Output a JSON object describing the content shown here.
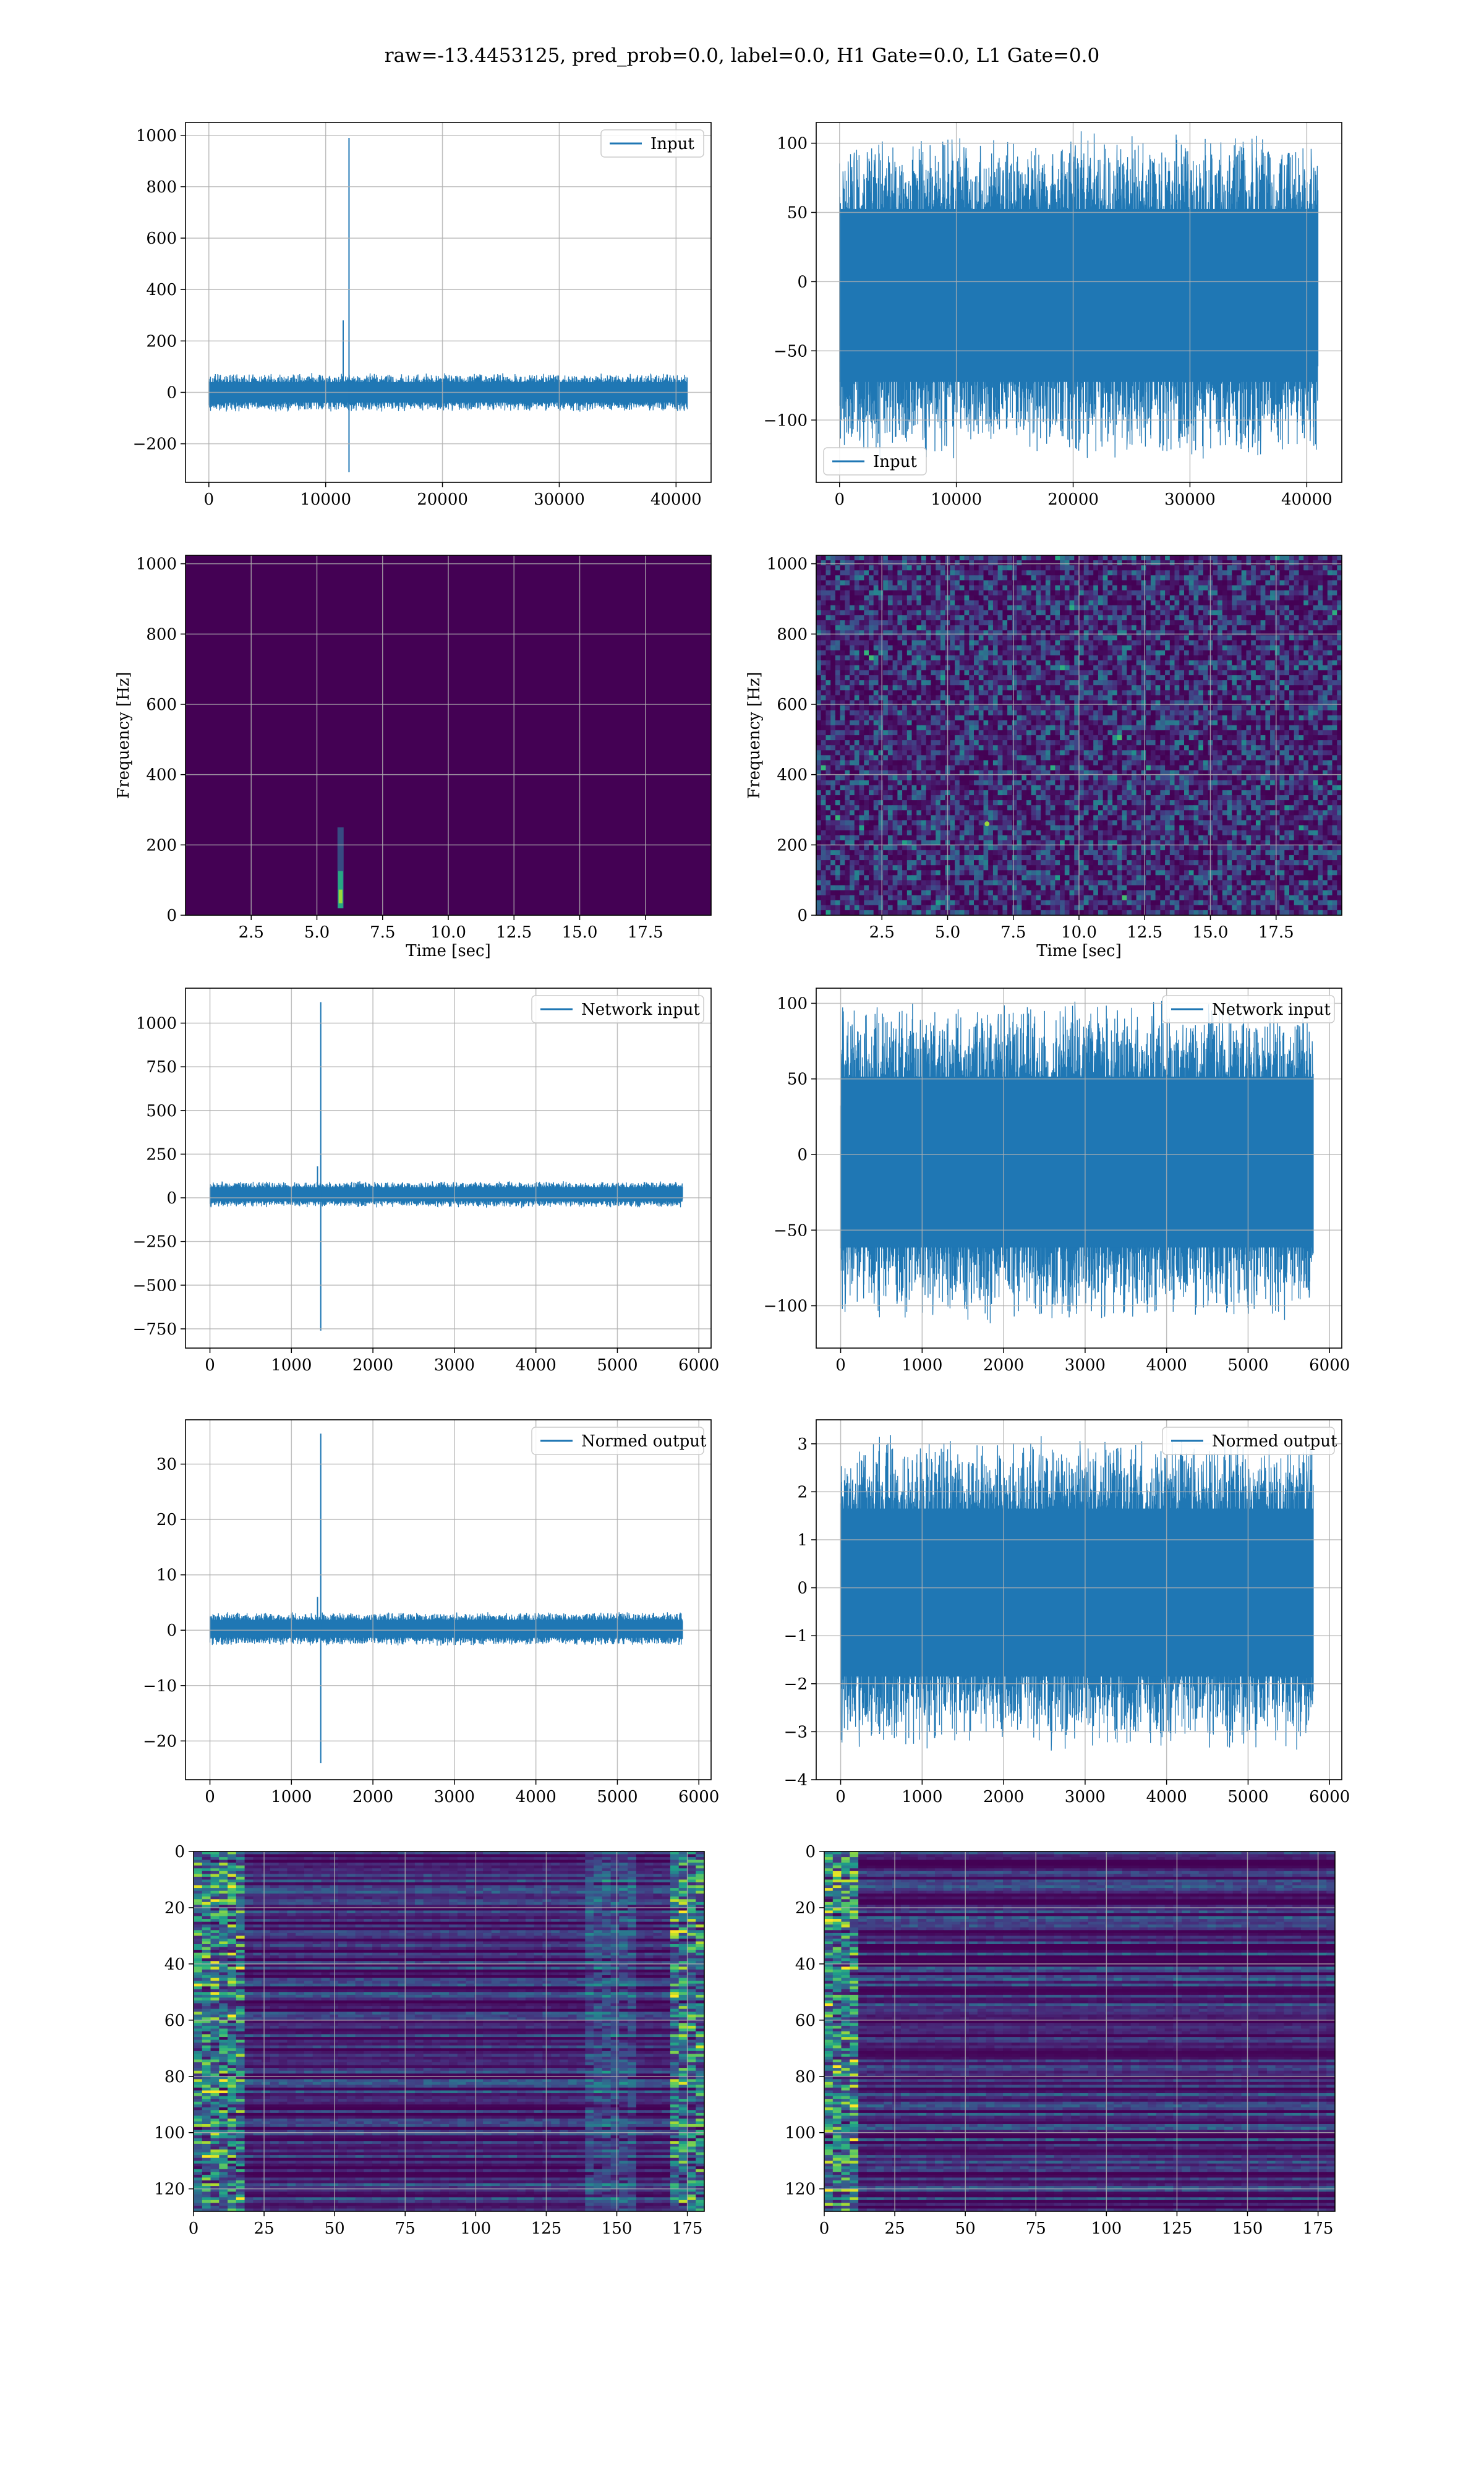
{
  "figure": {
    "suptitle": "raw=-13.4453125, pred_prob=0.0, label=0.0, H1 Gate=0.0, L1 Gate=0.0"
  },
  "colors": {
    "line": "#1f77b4",
    "viridis_dark": "#440154",
    "grid": "#b0b0b0"
  },
  "chart_data": [
    {
      "id": "input-h1",
      "type": "line",
      "legend": "Input",
      "legend_loc": "upper right",
      "xlim": [
        -2000,
        43000
      ],
      "ylim": [
        -350,
        1050
      ],
      "xticks": [
        0,
        10000,
        20000,
        30000,
        40000
      ],
      "xticklabels": [
        "0",
        "10000",
        "20000",
        "30000",
        "40000"
      ],
      "yticks": [
        -200,
        0,
        200,
        400,
        600,
        800,
        1000
      ],
      "yticklabels": [
        "−200",
        "0",
        "200",
        "400",
        "600",
        "800",
        "1000"
      ],
      "grid": true,
      "signal": {
        "n": 40960,
        "noise_band": [
          -80,
          80
        ],
        "spikes": [
          [
            11500,
            280
          ],
          [
            12000,
            990
          ],
          [
            12000,
            -310
          ]
        ]
      }
    },
    {
      "id": "input-l1",
      "type": "line",
      "legend": "Input",
      "legend_loc": "lower left",
      "xlim": [
        -2000,
        43000
      ],
      "ylim": [
        -145,
        115
      ],
      "xticks": [
        0,
        10000,
        20000,
        30000,
        40000
      ],
      "xticklabels": [
        "0",
        "10000",
        "20000",
        "30000",
        "40000"
      ],
      "yticks": [
        -100,
        -50,
        0,
        50,
        100
      ],
      "yticklabels": [
        "−100",
        "−50",
        "0",
        "50",
        "100"
      ],
      "grid": true,
      "signal": {
        "n": 40960,
        "noise_band": [
          -135,
          115
        ],
        "spikes": []
      }
    },
    {
      "id": "spec-h1",
      "type": "heatmap",
      "xlabel": "Time [sec]",
      "ylabel": "Frequency [Hz]",
      "xlim": [
        0,
        20
      ],
      "ylim": [
        0,
        1024
      ],
      "xticks": [
        2.5,
        5.0,
        7.5,
        10.0,
        12.5,
        15.0,
        17.5
      ],
      "xticklabels": [
        "2.5",
        "5.0",
        "7.5",
        "10.0",
        "12.5",
        "15.0",
        "17.5"
      ],
      "yticks": [
        0,
        200,
        400,
        600,
        800,
        1000
      ],
      "yticklabels": [
        "0",
        "200",
        "400",
        "600",
        "800",
        "1000"
      ],
      "grid": true,
      "colormap": "viridis",
      "feature": {
        "time": 5.9,
        "freq_range": [
          20,
          250
        ]
      }
    },
    {
      "id": "spec-l1",
      "type": "heatmap",
      "xlabel": "Time [sec]",
      "ylabel": "Frequency [Hz]",
      "xlim": [
        0,
        20
      ],
      "ylim": [
        0,
        1024
      ],
      "xticks": [
        2.5,
        5.0,
        7.5,
        10.0,
        12.5,
        15.0,
        17.5
      ],
      "xticklabels": [
        "2.5",
        "5.0",
        "7.5",
        "10.0",
        "12.5",
        "15.0",
        "17.5"
      ],
      "yticks": [
        0,
        200,
        400,
        600,
        800,
        1000
      ],
      "yticklabels": [
        "0",
        "200",
        "400",
        "600",
        "800",
        "1000"
      ],
      "grid": true,
      "colormap": "viridis",
      "feature": {
        "time": 6.5,
        "freq": 260
      }
    },
    {
      "id": "netin-h1",
      "type": "line",
      "legend": "Network input",
      "legend_loc": "upper right",
      "xlim": [
        -300,
        6150
      ],
      "ylim": [
        -860,
        1200
      ],
      "xticks": [
        0,
        1000,
        2000,
        3000,
        4000,
        5000,
        6000
      ],
      "xticklabels": [
        "0",
        "1000",
        "2000",
        "3000",
        "4000",
        "5000",
        "6000"
      ],
      "yticks": [
        -750,
        -500,
        -250,
        0,
        250,
        500,
        750,
        1000
      ],
      "yticklabels": [
        "−750",
        "−500",
        "−250",
        "0",
        "250",
        "500",
        "750",
        "1000"
      ],
      "grid": true,
      "signal": {
        "n": 5800,
        "noise_band": [
          -60,
          100
        ],
        "spikes": [
          [
            1360,
            1120
          ],
          [
            1360,
            -760
          ],
          [
            1320,
            180
          ]
        ]
      }
    },
    {
      "id": "netin-l1",
      "type": "line",
      "legend": "Network input",
      "legend_loc": "upper right",
      "xlim": [
        -300,
        6150
      ],
      "ylim": [
        -128,
        110
      ],
      "xticks": [
        0,
        1000,
        2000,
        3000,
        4000,
        5000,
        6000
      ],
      "xticklabels": [
        "0",
        "1000",
        "2000",
        "3000",
        "4000",
        "5000",
        "6000"
      ],
      "yticks": [
        -100,
        -50,
        0,
        50,
        100
      ],
      "yticklabels": [
        "−100",
        "−50",
        "0",
        "50",
        "100"
      ],
      "grid": true,
      "signal": {
        "n": 5800,
        "noise_band": [
          -118,
          108
        ],
        "spikes": []
      }
    },
    {
      "id": "normed-h1",
      "type": "line",
      "legend": "Normed output",
      "legend_loc": "upper right",
      "xlim": [
        -300,
        6150
      ],
      "ylim": [
        -27,
        38
      ],
      "xticks": [
        0,
        1000,
        2000,
        3000,
        4000,
        5000,
        6000
      ],
      "xticklabels": [
        "0",
        "1000",
        "2000",
        "3000",
        "4000",
        "5000",
        "6000"
      ],
      "yticks": [
        -20,
        -10,
        0,
        10,
        20,
        30
      ],
      "yticklabels": [
        "−20",
        "−10",
        "0",
        "10",
        "20",
        "30"
      ],
      "grid": true,
      "signal": {
        "n": 5800,
        "noise_band": [
          -3,
          3.5
        ],
        "spikes": [
          [
            1360,
            35.5
          ],
          [
            1360,
            -24
          ],
          [
            1320,
            6
          ]
        ]
      }
    },
    {
      "id": "normed-l1",
      "type": "line",
      "legend": "Normed output",
      "legend_loc": "upper right",
      "xlim": [
        -300,
        6150
      ],
      "ylim": [
        -4,
        3.5
      ],
      "xticks": [
        0,
        1000,
        2000,
        3000,
        4000,
        5000,
        6000
      ],
      "xticklabels": [
        "0",
        "1000",
        "2000",
        "3000",
        "4000",
        "5000",
        "6000"
      ],
      "yticks": [
        -4,
        -3,
        -2,
        -1,
        0,
        1,
        2,
        3
      ],
      "yticklabels": [
        "−4",
        "−3",
        "−2",
        "−1",
        "0",
        "1",
        "2",
        "3"
      ],
      "grid": true,
      "signal": {
        "n": 5800,
        "noise_band": [
          -3.6,
          3.4
        ],
        "spikes": []
      }
    },
    {
      "id": "feat-h1",
      "type": "heatmap",
      "xlim": [
        0,
        181
      ],
      "ylim": [
        128,
        0
      ],
      "xticks": [
        0,
        25,
        50,
        75,
        100,
        125,
        150,
        175
      ],
      "xticklabels": [
        "0",
        "25",
        "50",
        "75",
        "100",
        "125",
        "150",
        "175"
      ],
      "yticks": [
        0,
        20,
        40,
        60,
        80,
        100,
        120
      ],
      "yticklabels": [
        "0",
        "20",
        "40",
        "60",
        "80",
        "100",
        "120"
      ],
      "grid": true,
      "colormap": "viridis"
    },
    {
      "id": "feat-l1",
      "type": "heatmap",
      "xlim": [
        0,
        181
      ],
      "ylim": [
        128,
        0
      ],
      "xticks": [
        0,
        25,
        50,
        75,
        100,
        125,
        150,
        175
      ],
      "xticklabels": [
        "0",
        "25",
        "50",
        "75",
        "100",
        "125",
        "150",
        "175"
      ],
      "yticks": [
        0,
        20,
        40,
        60,
        80,
        100,
        120
      ],
      "yticklabels": [
        "0",
        "20",
        "40",
        "60",
        "80",
        "100",
        "120"
      ],
      "grid": true,
      "colormap": "viridis"
    }
  ]
}
